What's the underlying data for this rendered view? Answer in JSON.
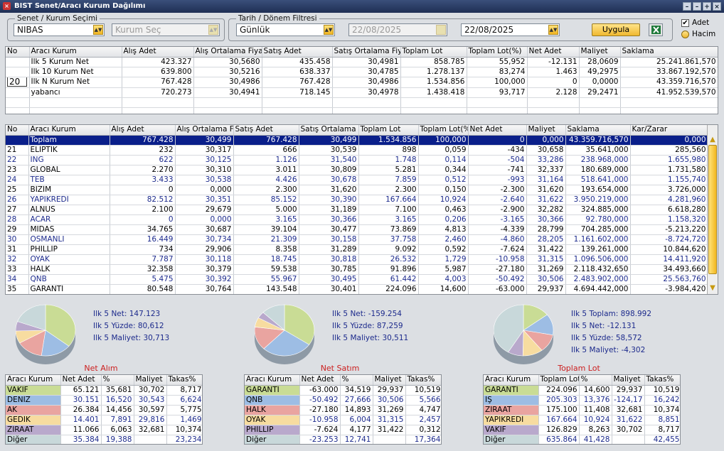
{
  "window": {
    "title": "BIST Senet/Aracı Kurum Dağılımı",
    "close_glyph": "×",
    "buttons": [
      "–",
      "–",
      "+",
      "×"
    ]
  },
  "filters": {
    "senet_group": "Senet / Kurum Seçimi",
    "senet_value": "NIBAS",
    "kurum_placeholder": "Kurum Seç",
    "tarih_group": "Tarih / Dönem Filtresi",
    "period_value": "Günlük",
    "start_date": "22/08/2025",
    "end_date": "22/08/2025",
    "apply_label": "Uygula",
    "adet_label": "Adet",
    "hacim_label": "Hacim",
    "adet_checked": "✔"
  },
  "top_table": {
    "headers": [
      "No",
      "Aracı Kurum",
      "Alış Adet",
      "Alış Ortalama Fiyat",
      "Satış Adet",
      "Satış Ortalama Fiyat",
      "Toplam Lot",
      "Toplam Lot(%)",
      "Net Adet",
      "Maliyet",
      "Saklama"
    ],
    "rows": [
      [
        "",
        "İlk 5 Kurum Net",
        "423.327",
        "30,5680",
        "435.458",
        "30,4981",
        "858.785",
        "55,952",
        "-12.131",
        "28,0609",
        "25.241.861,570"
      ],
      [
        "",
        "İlk 10 Kurum Net",
        "639.800",
        "30,5216",
        "638.337",
        "30,4785",
        "1.278.137",
        "83,274",
        "1.463",
        "49,2975",
        "33.867.192,570"
      ],
      [
        "20",
        "İlk N Kurum Net",
        "767.428",
        "30,4986",
        "767.428",
        "30,4986",
        "1.534.856",
        "100,000",
        "0",
        "0,0000",
        "43.359.716,570"
      ],
      [
        "",
        "yabancı",
        "720.273",
        "30,4941",
        "718.145",
        "30,4978",
        "1.438.418",
        "93,717",
        "2.128",
        "29,2471",
        "41.952.539,570"
      ]
    ]
  },
  "main_table": {
    "headers": [
      "No",
      "Aracı Kurum",
      "Alış Adet",
      "Alış Ortalama Fiy",
      "Satış Adet",
      "Satış Ortalama Fi",
      "Toplam Lot",
      "Toplam Lot(%",
      "Net Adet",
      "Maliyet",
      "Saklama",
      "Kar/Zarar"
    ],
    "rows": [
      [
        "",
        "Toplam",
        "767.428",
        "30,499",
        "767.428",
        "30,499",
        "1.534.856",
        "100,000",
        "0",
        "0,000",
        "43.359.716,570",
        "0,000"
      ],
      [
        "21",
        "ELİPTİK",
        "232",
        "30,317",
        "666",
        "30,539",
        "898",
        "0,059",
        "-434",
        "30,658",
        "35.641,000",
        "285,560"
      ],
      [
        "22",
        "ING",
        "622",
        "30,125",
        "1.126",
        "31,540",
        "1.748",
        "0,114",
        "-504",
        "33,286",
        "238.968,000",
        "1.655,980"
      ],
      [
        "23",
        "GLOBAL",
        "2.270",
        "30,310",
        "3.011",
        "30,809",
        "5.281",
        "0,344",
        "-741",
        "32,337",
        "180.689,000",
        "1.731,580"
      ],
      [
        "24",
        "TEB",
        "3.433",
        "30,538",
        "4.426",
        "30,678",
        "7.859",
        "0,512",
        "-993",
        "31,164",
        "518.641,000",
        "1.155,740"
      ],
      [
        "25",
        "BİZİM",
        "0",
        "0,000",
        "2.300",
        "31,620",
        "2.300",
        "0,150",
        "-2.300",
        "31,620",
        "193.654,000",
        "3.726,000"
      ],
      [
        "26",
        "YAPIKREDİ",
        "82.512",
        "30,351",
        "85.152",
        "30,390",
        "167.664",
        "10,924",
        "-2.640",
        "31,622",
        "3.950.219,000",
        "4.281,960"
      ],
      [
        "27",
        "ALNUS",
        "2.100",
        "29,679",
        "5.000",
        "31,189",
        "7.100",
        "0,463",
        "-2.900",
        "32,282",
        "324.885,000",
        "6.618,280"
      ],
      [
        "28",
        "ACAR",
        "0",
        "0,000",
        "3.165",
        "30,366",
        "3.165",
        "0,206",
        "-3.165",
        "30,366",
        "92.780,000",
        "1.158,320"
      ],
      [
        "29",
        "MİDAS",
        "34.765",
        "30,687",
        "39.104",
        "30,477",
        "73.869",
        "4,813",
        "-4.339",
        "28,799",
        "704.285,000",
        "-5.213,220"
      ],
      [
        "30",
        "OSMANLI",
        "16.449",
        "30,734",
        "21.309",
        "30,158",
        "37.758",
        "2,460",
        "-4.860",
        "28,205",
        "1.161.602,000",
        "-8.724,720"
      ],
      [
        "31",
        "PHİLLİP",
        "734",
        "29,906",
        "8.358",
        "31,289",
        "9.092",
        "0,592",
        "-7.624",
        "31,422",
        "139.261,000",
        "10.844,620"
      ],
      [
        "32",
        "OYAK",
        "7.787",
        "30,118",
        "18.745",
        "30,818",
        "26.532",
        "1,729",
        "-10.958",
        "31,315",
        "1.096.506,000",
        "14.411,920"
      ],
      [
        "33",
        "HALK",
        "32.358",
        "30,379",
        "59.538",
        "30,785",
        "91.896",
        "5,987",
        "-27.180",
        "31,269",
        "2.118.432,650",
        "34.493,660"
      ],
      [
        "34",
        "QNB",
        "5.475",
        "30,392",
        "55.967",
        "30,495",
        "61.442",
        "4,003",
        "-50.492",
        "30,506",
        "2.483.902,000",
        "25.563,760"
      ],
      [
        "35",
        "GARANTİ",
        "80.548",
        "30,764",
        "143.548",
        "30,401",
        "224.096",
        "14,600",
        "-63.000",
        "29,937",
        "4.694.442,000",
        "-3.984,420"
      ]
    ]
  },
  "panels": [
    {
      "caption": "Net Alım",
      "info": [
        "Ilk 5 Net: 147.123",
        "Ilk 5 Yüzde: 80,612",
        "Ilk 5 Maliyet: 30,713"
      ],
      "headers": [
        "Aracı Kurum",
        "Net Adet",
        "%",
        "Maliyet",
        "Takas%"
      ],
      "rows": [
        [
          "VAKIF",
          "65.121",
          "35,681",
          "30,702",
          "8,717"
        ],
        [
          "DENİZ",
          "30.151",
          "16,520",
          "30,543",
          "6,624"
        ],
        [
          "AK",
          "26.384",
          "14,456",
          "30,597",
          "5,775"
        ],
        [
          "GEDİK",
          "14.401",
          "7,891",
          "29,816",
          "1,469"
        ],
        [
          "ZİRAAT",
          "11.066",
          "6,063",
          "32,681",
          "10,374"
        ],
        [
          "Diğer",
          "35.384",
          "19,388",
          "",
          "23,234"
        ]
      ],
      "slices": [
        35.681,
        16.52,
        14.456,
        7.891,
        6.063,
        19.388
      ]
    },
    {
      "caption": "Net Satım",
      "info": [
        "Ilk 5 Net: -159.254",
        "Ilk 5 Yüzde: 87,259",
        "Ilk 5 Maliyet: 30,511"
      ],
      "headers": [
        "Aracı Kurum",
        "Net Adet",
        "%",
        "Maliyet",
        "Takas%"
      ],
      "rows": [
        [
          "GARANTİ",
          "-63.000",
          "34,519",
          "29,937",
          "10,519"
        ],
        [
          "QNB",
          "-50.492",
          "27,666",
          "30,506",
          "5,566"
        ],
        [
          "HALK",
          "-27.180",
          "14,893",
          "31,269",
          "4,747"
        ],
        [
          "OYAK",
          "-10.958",
          "6,004",
          "31,315",
          "2,457"
        ],
        [
          "PHİLLİP",
          "-7.624",
          "4,177",
          "31,422",
          "0,312"
        ],
        [
          "Diğer",
          "-23.253",
          "12,741",
          "",
          "17,364"
        ]
      ],
      "slices": [
        34.519,
        27.666,
        14.893,
        6.004,
        4.177,
        12.741
      ]
    },
    {
      "caption": "Toplam Lot",
      "info": [
        "Ilk 5 Toplam: 898.992",
        "Ilk 5 Net: -12.131",
        "Ilk 5 Yüzde: 58,572",
        "Ilk 5 Maliyet: -4,302"
      ],
      "headers": [
        "Aracı Kurum",
        "Toplam Lot",
        "%",
        "Maliyet",
        "Takas%"
      ],
      "rows": [
        [
          "GARANTİ",
          "224.096",
          "14,600",
          "29,937",
          "10,519"
        ],
        [
          "İŞ",
          "205.303",
          "13,376",
          "-124,17",
          "16,242"
        ],
        [
          "ZİRAAT",
          "175.100",
          "11,408",
          "32,681",
          "10,374"
        ],
        [
          "YAPIKREDİ",
          "167.664",
          "10,924",
          "31,622",
          "8,851"
        ],
        [
          "VAKIF",
          "126.829",
          "8,263",
          "30,702",
          "8,717"
        ],
        [
          "Diğer",
          "635.864",
          "41,428",
          "",
          "42,455"
        ]
      ],
      "slices": [
        14.6,
        13.376,
        11.408,
        10.924,
        8.263,
        41.428
      ]
    }
  ],
  "slice_colors": [
    "#c9dc95",
    "#9dbde4",
    "#e9a4a0",
    "#f7dca0",
    "#b9a9cc",
    "#c8d8da"
  ]
}
